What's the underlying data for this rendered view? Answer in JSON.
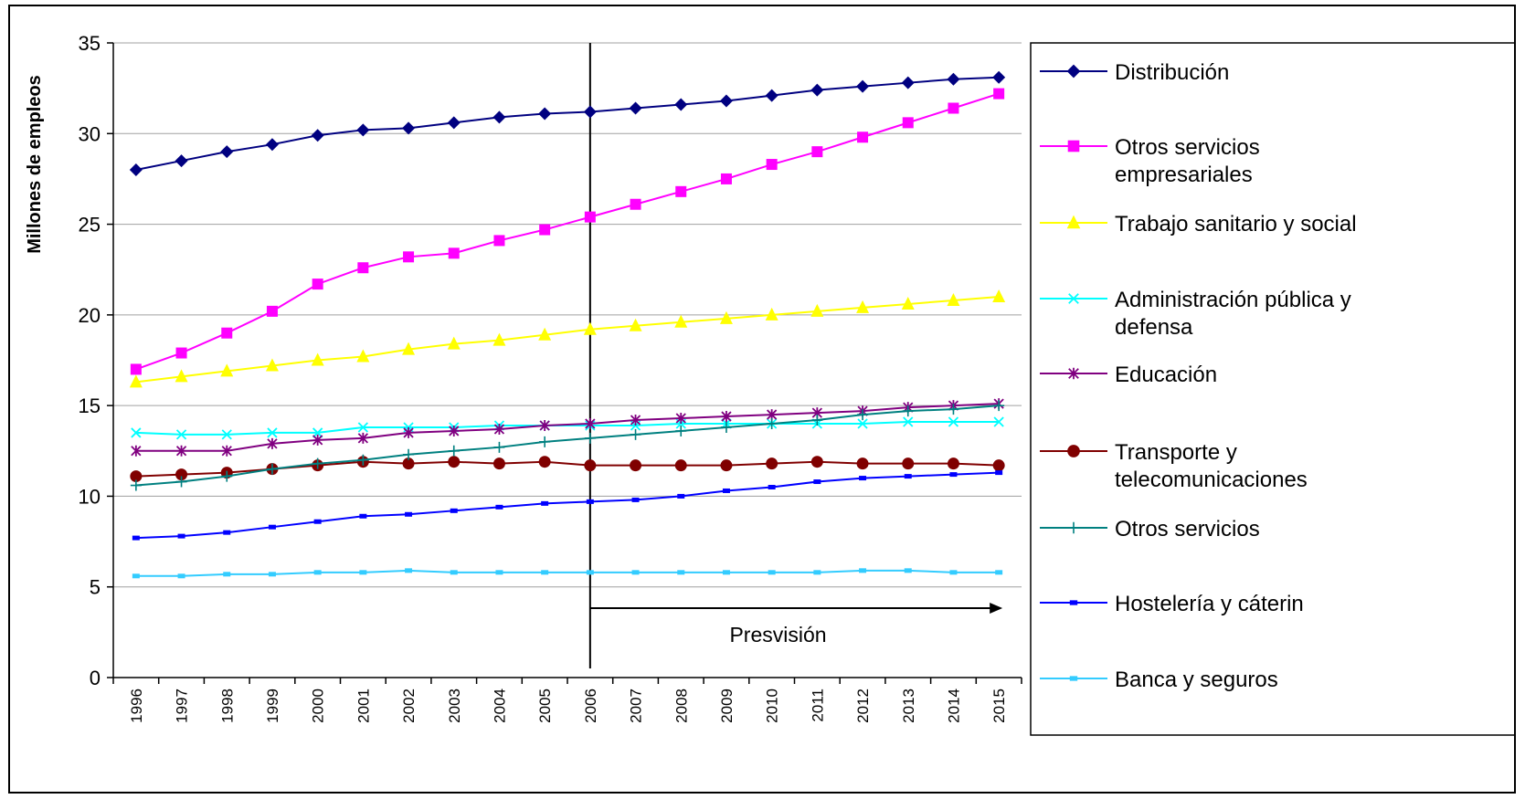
{
  "chart_data": {
    "type": "line",
    "ylabel": "Millones de empleos",
    "xlabel": "",
    "ylim": [
      0,
      35
    ],
    "yticks": [
      "0",
      "5",
      "10",
      "15",
      "20",
      "25",
      "30",
      "35"
    ],
    "grid": "horizontal",
    "legend_position": "right",
    "categories": [
      "1996",
      "1997",
      "1998",
      "1999",
      "2000",
      "2001",
      "2002",
      "2003",
      "2004",
      "2005",
      "2006",
      "2007",
      "2008",
      "2009",
      "2010",
      "2011",
      "2012",
      "2013",
      "2014",
      "2015"
    ],
    "annotation": {
      "text": "Presvisión",
      "divider_at": "2006",
      "arrow_from": "2006",
      "arrow_to": "2015"
    },
    "series": [
      {
        "name": "Distribución",
        "color": "#000080",
        "marker": "diamond",
        "values": [
          28.0,
          28.5,
          29.0,
          29.4,
          29.9,
          30.2,
          30.3,
          30.6,
          30.9,
          31.1,
          31.2,
          31.4,
          31.6,
          31.8,
          32.1,
          32.4,
          32.6,
          32.8,
          33.0,
          33.1
        ]
      },
      {
        "name": "Otros servicios empresariales",
        "color": "#ff00ff",
        "marker": "square",
        "values": [
          17.0,
          17.9,
          19.0,
          20.2,
          21.7,
          22.6,
          23.2,
          23.4,
          24.1,
          24.7,
          25.4,
          26.1,
          26.8,
          27.5,
          28.3,
          29.0,
          29.8,
          30.6,
          31.4,
          32.2
        ]
      },
      {
        "name": "Trabajo sanitario y social",
        "color": "#ffff00",
        "marker": "triangle",
        "values": [
          16.3,
          16.6,
          16.9,
          17.2,
          17.5,
          17.7,
          18.1,
          18.4,
          18.6,
          18.9,
          19.2,
          19.4,
          19.6,
          19.8,
          20.0,
          20.2,
          20.4,
          20.6,
          20.8,
          21.0
        ]
      },
      {
        "name": "Administración pública y defensa",
        "color": "#00ffff",
        "marker": "x",
        "values": [
          13.5,
          13.4,
          13.4,
          13.5,
          13.5,
          13.8,
          13.8,
          13.8,
          13.9,
          13.9,
          13.9,
          13.9,
          14.0,
          14.0,
          14.0,
          14.0,
          14.0,
          14.1,
          14.1,
          14.1
        ]
      },
      {
        "name": "Educación",
        "color": "#800080",
        "marker": "star",
        "values": [
          12.5,
          12.5,
          12.5,
          12.9,
          13.1,
          13.2,
          13.5,
          13.6,
          13.7,
          13.9,
          14.0,
          14.2,
          14.3,
          14.4,
          14.5,
          14.6,
          14.7,
          14.9,
          15.0,
          15.1
        ]
      },
      {
        "name": "Transporte y telecomunicaciones",
        "color": "#800000",
        "marker": "circle",
        "values": [
          11.1,
          11.2,
          11.3,
          11.5,
          11.7,
          11.9,
          11.8,
          11.9,
          11.8,
          11.9,
          11.7,
          11.7,
          11.7,
          11.7,
          11.8,
          11.9,
          11.8,
          11.8,
          11.8,
          11.7
        ]
      },
      {
        "name": "Otros servicios",
        "color": "#008080",
        "marker": "plus",
        "values": [
          10.6,
          10.8,
          11.1,
          11.5,
          11.8,
          12.0,
          12.3,
          12.5,
          12.7,
          13.0,
          13.2,
          13.4,
          13.6,
          13.8,
          14.0,
          14.2,
          14.5,
          14.7,
          14.8,
          15.0
        ]
      },
      {
        "name": "Hostelería y cáterin",
        "color": "#0000ff",
        "marker": "dash",
        "values": [
          7.7,
          7.8,
          8.0,
          8.3,
          8.6,
          8.9,
          9.0,
          9.2,
          9.4,
          9.6,
          9.7,
          9.8,
          10.0,
          10.3,
          10.5,
          10.8,
          11.0,
          11.1,
          11.2,
          11.3
        ]
      },
      {
        "name": "Banca y seguros",
        "color": "#33ccff",
        "marker": "dash",
        "values": [
          5.6,
          5.6,
          5.7,
          5.7,
          5.8,
          5.8,
          5.9,
          5.8,
          5.8,
          5.8,
          5.8,
          5.8,
          5.8,
          5.8,
          5.8,
          5.8,
          5.9,
          5.9,
          5.8,
          5.8
        ]
      }
    ]
  }
}
